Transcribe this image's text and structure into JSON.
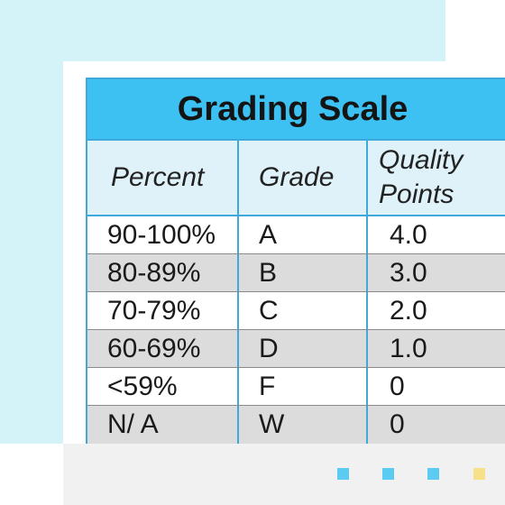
{
  "title": "Grading Scale",
  "headers": {
    "percent": "Percent",
    "grade": "Grade",
    "quality_line1": "Quality",
    "quality_line2": "Points"
  },
  "rows": [
    {
      "percent": "90-100%",
      "grade": "A",
      "points": "4.0"
    },
    {
      "percent": "80-89%",
      "grade": "B",
      "points": "3.0"
    },
    {
      "percent": "70-79%",
      "grade": "C",
      "points": "2.0"
    },
    {
      "percent": "60-69%",
      "grade": "D",
      "points": "1.0"
    },
    {
      "percent": "<59%",
      "grade": "F",
      "points": "0"
    },
    {
      "percent": "N/ A",
      "grade": "W",
      "points": "0"
    }
  ],
  "colors": {
    "title_bar": "#3cc1f2",
    "header_row": "#dff2f9",
    "shaded_row": "#dcdcdc",
    "border": "#3fa9dc",
    "page_accent": "#d3f3f8",
    "dot_blue": "#5ccbf2",
    "dot_yellow": "#f6e08a"
  }
}
